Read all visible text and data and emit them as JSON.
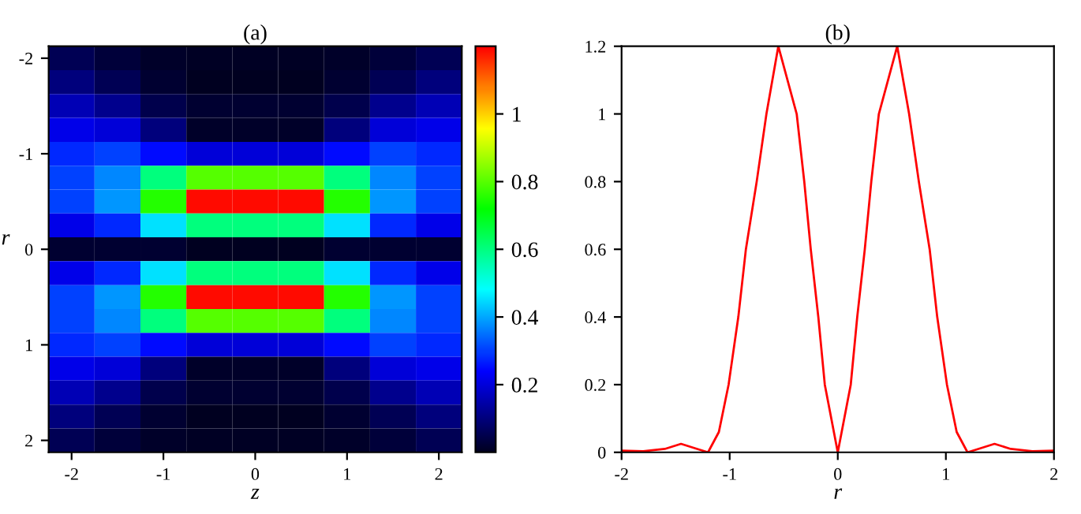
{
  "chart_data": [
    {
      "type": "heatmap",
      "title": "(a)",
      "xlabel": "z",
      "ylabel": "r",
      "categories": [
        "-2",
        null,
        "-1",
        null,
        "0",
        null,
        "1",
        null,
        "2"
      ],
      "y_categories": [
        "-2",
        null,
        null,
        null,
        "-1",
        null,
        null,
        null,
        "0",
        null,
        null,
        null,
        "1",
        null,
        null,
        null,
        "2"
      ],
      "cells": [
        [
          0.06,
          0.03,
          0.01,
          0.005,
          0.005,
          0.005,
          0.01,
          0.03,
          0.06
        ],
        [
          0.1,
          0.06,
          0.02,
          0.003,
          0.003,
          0.003,
          0.02,
          0.06,
          0.1
        ],
        [
          0.16,
          0.12,
          0.05,
          0.02,
          0.02,
          0.02,
          0.05,
          0.12,
          0.16
        ],
        [
          0.22,
          0.2,
          0.1,
          0.01,
          0.01,
          0.01,
          0.1,
          0.2,
          0.22
        ],
        [
          0.28,
          0.3,
          0.25,
          0.2,
          0.2,
          0.2,
          0.25,
          0.3,
          0.28
        ],
        [
          0.3,
          0.37,
          0.6,
          0.8,
          0.8,
          0.8,
          0.6,
          0.37,
          0.3
        ],
        [
          0.3,
          0.38,
          0.75,
          1.19,
          1.19,
          1.19,
          0.75,
          0.38,
          0.3
        ],
        [
          0.22,
          0.28,
          0.45,
          0.6,
          0.6,
          0.6,
          0.45,
          0.28,
          0.22
        ],
        [
          0.02,
          0.02,
          0.02,
          0.0,
          0.0,
          0.0,
          0.02,
          0.02,
          0.02
        ],
        [
          0.22,
          0.28,
          0.45,
          0.6,
          0.6,
          0.6,
          0.45,
          0.28,
          0.22
        ],
        [
          0.3,
          0.38,
          0.75,
          1.19,
          1.19,
          1.19,
          0.75,
          0.38,
          0.3
        ],
        [
          0.3,
          0.37,
          0.6,
          0.8,
          0.8,
          0.8,
          0.6,
          0.37,
          0.3
        ],
        [
          0.28,
          0.3,
          0.25,
          0.2,
          0.2,
          0.2,
          0.25,
          0.3,
          0.28
        ],
        [
          0.22,
          0.2,
          0.1,
          0.01,
          0.01,
          0.01,
          0.1,
          0.2,
          0.22
        ],
        [
          0.16,
          0.12,
          0.05,
          0.02,
          0.02,
          0.02,
          0.05,
          0.12,
          0.16
        ],
        [
          0.1,
          0.06,
          0.02,
          0.003,
          0.003,
          0.003,
          0.02,
          0.06,
          0.1
        ],
        [
          0.06,
          0.03,
          0.01,
          0.005,
          0.005,
          0.005,
          0.01,
          0.03,
          0.06
        ]
      ],
      "clim": [
        0,
        1.2
      ],
      "cticks": [
        0.2,
        0.4,
        0.6,
        0.8,
        1
      ]
    },
    {
      "type": "line",
      "title": "(b)",
      "xlabel": "r",
      "xlim": [
        -2,
        2
      ],
      "xticks": [
        -2,
        -1,
        0,
        1,
        2
      ],
      "ylim": [
        0,
        1.2
      ],
      "yticks": [
        0,
        0.2,
        0.4,
        0.6,
        0.8,
        1,
        1.2
      ],
      "grid": false,
      "marker": "none",
      "line_style": "solid",
      "series": [
        {
          "color": "#ff0000",
          "x": [
            -2,
            -1.8,
            -1.6,
            -1.45,
            -1.3,
            -1.2,
            -1.1,
            -1.01,
            -0.92,
            -0.85,
            -0.75,
            -0.66,
            -0.55,
            -0.38,
            -0.31,
            -0.25,
            -0.18,
            -0.12,
            0,
            0.12,
            0.18,
            0.25,
            0.31,
            0.38,
            0.55,
            0.66,
            0.75,
            0.85,
            0.92,
            1.01,
            1.1,
            1.2,
            1.3,
            1.45,
            1.6,
            1.8,
            2
          ],
          "values": [
            0.005,
            0.003,
            0.01,
            0.025,
            0.01,
            0,
            0.06,
            0.2,
            0.4,
            0.6,
            0.8,
            1.0,
            1.2,
            1.0,
            0.8,
            0.6,
            0.4,
            0.2,
            0,
            0.2,
            0.4,
            0.6,
            0.8,
            1.0,
            1.2,
            1.0,
            0.8,
            0.6,
            0.4,
            0.2,
            0.06,
            0,
            0.01,
            0.025,
            0.01,
            0.003,
            0.005
          ]
        }
      ]
    }
  ]
}
